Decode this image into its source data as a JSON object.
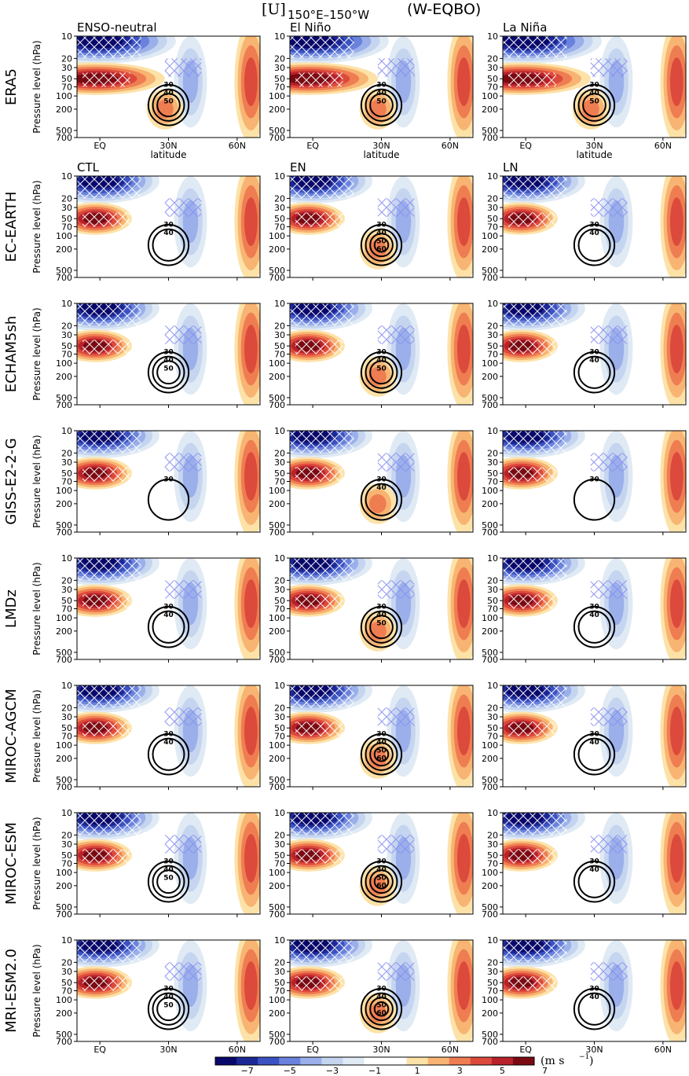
{
  "figure": {
    "title_main": "[U]",
    "title_sub": "150°E–150°W",
    "title_tail": "(W-EQBO)"
  },
  "chart_data": {
    "type": "heatmap",
    "description_grid": "8 rows (datasets) x 3 columns (ENSO phase); latitude-pressure cross sections of zonal-mean zonal wind anomaly (shaded) with climatological wind contours",
    "rows": [
      "ERA5",
      "EC-EARTH",
      "ECHAM5sh",
      "GISS-E2-2-G",
      "LMDz",
      "MIROC-AGCM",
      "MIROC-ESM",
      "MRI-ESM2.0"
    ],
    "column_titles_row1": [
      "ENSO-neutral",
      "El Niño",
      "La Niña"
    ],
    "column_titles_row2": [
      "CTL",
      "EN",
      "LN"
    ],
    "x_ticks": [
      "EQ",
      "30N",
      "60N"
    ],
    "x_label": "latitude",
    "y_ticks": [
      "10",
      "20",
      "30",
      "50",
      "70",
      "100",
      "200",
      "500",
      "700"
    ],
    "y_label": "Pressure level (hPa)",
    "colorbar": {
      "ticks": [
        "−7",
        "−5",
        "−3",
        "−1",
        "1",
        "3",
        "5",
        "7"
      ],
      "unit_main": "(m s",
      "unit_exp": "−1",
      "unit_close": ")",
      "colors": [
        "#08086b",
        "#1c2896",
        "#3b52c2",
        "#6a82db",
        "#9bb0ea",
        "#c5d5f0",
        "#dfeaf4",
        "#ffffff",
        "#ffffff",
        "#fde2a8",
        "#f8b472",
        "#ef7d52",
        "#dc4a3c",
        "#b8222a",
        "#7a0a12"
      ]
    },
    "contour_labels": {
      "ERA5": [
        [
          "30",
          "40",
          "50"
        ],
        [
          "30",
          "40",
          "50"
        ],
        [
          "30",
          "40",
          "50"
        ]
      ],
      "EC-EARTH": [
        [
          "30",
          "40"
        ],
        [
          "30",
          "40",
          "50",
          "60"
        ],
        [
          "30",
          "40"
        ]
      ],
      "ECHAM5sh": [
        [
          "30",
          "40",
          "50"
        ],
        [
          "30",
          "40",
          "50"
        ],
        [
          "30",
          "40"
        ]
      ],
      "GISS-E2-2-G": [
        [
          "30"
        ],
        [
          "30",
          "40"
        ],
        [
          "30"
        ]
      ],
      "LMDz": [
        [
          "30",
          "40"
        ],
        [
          "30",
          "40",
          "50"
        ],
        [
          "30",
          "40"
        ]
      ],
      "MIROC-AGCM": [
        [
          "30",
          "40"
        ],
        [
          "30",
          "40",
          "50",
          "60"
        ],
        [
          "30",
          "40"
        ]
      ],
      "MIROC-ESM": [
        [
          "30",
          "40",
          "50"
        ],
        [
          "30",
          "40",
          "50",
          "60"
        ],
        [
          "30",
          "40"
        ]
      ],
      "MRI-ESM2.0": [
        [
          "30",
          "40",
          "50"
        ],
        [
          "30",
          "40",
          "50",
          "60"
        ],
        [
          "30",
          "40"
        ]
      ]
    }
  }
}
